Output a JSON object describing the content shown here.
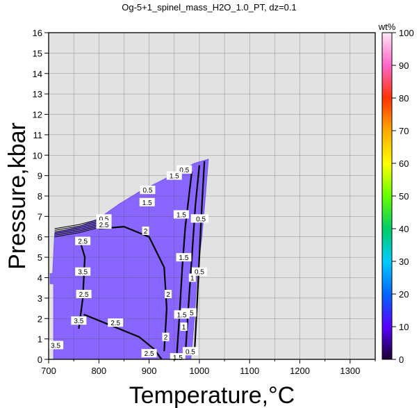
{
  "chart_data": {
    "type": "heatmap",
    "title": "Og-5+1_spinel_mass_H2O_1.0_PT, dz=0.1",
    "xlabel": "Temperature,°C",
    "ylabel": "Pressure,kbar",
    "xlim": [
      700,
      1350
    ],
    "ylim": [
      0,
      16
    ],
    "x_ticks": [
      700,
      800,
      900,
      1000,
      1100,
      1200,
      1300
    ],
    "y_ticks": [
      0,
      1,
      2,
      3,
      4,
      5,
      6,
      7,
      8,
      9,
      10,
      11,
      12,
      13,
      14,
      15,
      16
    ],
    "grid": true,
    "colorbar": {
      "label": "wt%",
      "range": [
        0,
        100
      ],
      "ticks": [
        0,
        10,
        20,
        30,
        40,
        50,
        60,
        70,
        80,
        90,
        100
      ],
      "stops": [
        "#1a0033",
        "#5a00ff",
        "#0066ff",
        "#00ccff",
        "#00cc66",
        "#66ff00",
        "#ffff00",
        "#ffaa00",
        "#ff3300",
        "#ff66cc",
        "#ffe6f5"
      ]
    },
    "field_color": "#8866ff",
    "background_color": "#e2e2e2",
    "field_outline": [
      [
        708,
        4.2
      ],
      [
        712,
        6.2
      ],
      [
        760,
        6.5
      ],
      [
        800,
        6.9
      ],
      [
        840,
        7.6
      ],
      [
        880,
        8.2
      ],
      [
        920,
        8.7
      ],
      [
        960,
        9.2
      ],
      [
        990,
        9.6
      ],
      [
        1018,
        9.8
      ],
      [
        1012,
        8
      ],
      [
        1005,
        6
      ],
      [
        995,
        4
      ],
      [
        990,
        2
      ],
      [
        985,
        0.5
      ],
      [
        983,
        0
      ],
      [
        710,
        0
      ],
      [
        710,
        3.7
      ],
      [
        703,
        3.7
      ],
      [
        703,
        4.2
      ]
    ],
    "contours": [
      {
        "label": "0.5",
        "points": [
          [
            990,
            0.2
          ],
          [
            995,
            2.5
          ],
          [
            1000,
            5
          ],
          [
            1005,
            7.5
          ],
          [
            1010,
            9.7
          ]
        ]
      },
      {
        "label": "1",
        "points": [
          [
            972,
            0.2
          ],
          [
            978,
            2.5
          ],
          [
            985,
            5
          ],
          [
            992,
            7.5
          ],
          [
            1000,
            9.5
          ]
        ]
      },
      {
        "label": "1.5",
        "points": [
          [
            955,
            0.2
          ],
          [
            960,
            2
          ],
          [
            966,
            4.5
          ],
          [
            972,
            6.5
          ],
          [
            985,
            9.2
          ]
        ]
      },
      {
        "label": "2",
        "points": [
          [
            930,
            0.4
          ],
          [
            935,
            2.5
          ],
          [
            930,
            4.5
          ],
          [
            900,
            6
          ],
          [
            850,
            6.5
          ],
          [
            800,
            6.4
          ]
        ]
      },
      {
        "label": "2.5",
        "points": [
          [
            770,
            2.2
          ],
          [
            830,
            1.6
          ],
          [
            880,
            1.1
          ],
          [
            910,
            0.5
          ],
          [
            925,
            0
          ]
        ]
      },
      {
        "label": "3.5",
        "points": [
          [
            760,
            1.5
          ],
          [
            768,
            3
          ],
          [
            772,
            5
          ],
          [
            760,
            6
          ]
        ]
      }
    ],
    "contour_labels": [
      {
        "text": "0.5",
        "x": 970,
        "y": 9.3
      },
      {
        "text": "1.5",
        "x": 950,
        "y": 9.0
      },
      {
        "text": "0.5",
        "x": 897,
        "y": 8.3
      },
      {
        "text": "1.5",
        "x": 896,
        "y": 7.7
      },
      {
        "text": "0.5",
        "x": 810,
        "y": 6.9
      },
      {
        "text": "2.5",
        "x": 810,
        "y": 6.6
      },
      {
        "text": "1.5",
        "x": 964,
        "y": 7.1
      },
      {
        "text": "1",
        "x": 990,
        "y": 6.9
      },
      {
        "text": "0.5",
        "x": 1003,
        "y": 6.9
      },
      {
        "text": "2",
        "x": 893,
        "y": 6.3
      },
      {
        "text": "2.5",
        "x": 768,
        "y": 5.8
      },
      {
        "text": "1.5",
        "x": 969,
        "y": 5.0
      },
      {
        "text": "0.5",
        "x": 1000,
        "y": 4.3
      },
      {
        "text": "1",
        "x": 986,
        "y": 4.0
      },
      {
        "text": "3.5",
        "x": 768,
        "y": 4.3
      },
      {
        "text": "2",
        "x": 938,
        "y": 3.2
      },
      {
        "text": "2.5",
        "x": 770,
        "y": 3.2
      },
      {
        "text": "0.5",
        "x": 979,
        "y": 2.3
      },
      {
        "text": "1.5",
        "x": 965,
        "y": 2.2
      },
      {
        "text": "1",
        "x": 969,
        "y": 1.6
      },
      {
        "text": "3.5",
        "x": 760,
        "y": 1.9
      },
      {
        "text": "2.5",
        "x": 833,
        "y": 1.8
      },
      {
        "text": "2",
        "x": 933,
        "y": 1.1
      },
      {
        "text": "3.5",
        "x": 714,
        "y": 0.7
      },
      {
        "text": "2.5",
        "x": 900,
        "y": 0.3
      },
      {
        "text": "1.5",
        "x": 957,
        "y": 0.1
      },
      {
        "text": "0.5",
        "x": 982,
        "y": 0.4
      }
    ]
  }
}
